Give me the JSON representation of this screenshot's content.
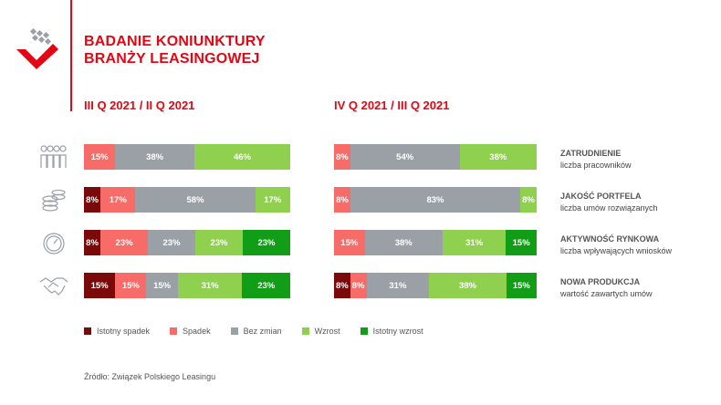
{
  "title": {
    "line1": "BADANIE KONIUNKTURY",
    "line2": "BRANŻY LEASINGOWEJ"
  },
  "colors": {
    "accent": "#e30613",
    "series": [
      "#7a0a0a",
      "#f76b68",
      "#9aa0a6",
      "#8fd14f",
      "#119e16"
    ]
  },
  "chart_data": {
    "type": "bar",
    "orientation": "horizontal-stacked-100",
    "series_names": [
      "Istotny spadek",
      "Spadek",
      "Bez zmian",
      "Wzrost",
      "Istotny wzrost"
    ],
    "categories": [
      {
        "name": "ZATRUDNIENIE",
        "subtitle": "liczba pracowników",
        "icon": "people-icon"
      },
      {
        "name": "JAKOŚĆ PORTFELA",
        "subtitle": "liczba umów rozwiązanych",
        "icon": "coins-icon"
      },
      {
        "name": "AKTYWNOŚĆ RYNKOWA",
        "subtitle": "liczba wpływających wniosków",
        "icon": "gauge-icon"
      },
      {
        "name": "NOWA PRODUKCJA",
        "subtitle": "wartość zawartych umów",
        "icon": "handshake-icon"
      }
    ],
    "panels": [
      {
        "title": "III Q 2021 / II Q 2021",
        "rows": [
          [
            0,
            15,
            38,
            46,
            0
          ],
          [
            8,
            17,
            58,
            17,
            0
          ],
          [
            8,
            23,
            23,
            23,
            23
          ],
          [
            15,
            15,
            15,
            31,
            23
          ]
        ]
      },
      {
        "title": "IV Q 2021 / III Q 2021",
        "rows": [
          [
            0,
            8,
            54,
            38,
            0
          ],
          [
            0,
            8,
            83,
            8,
            0
          ],
          [
            0,
            15,
            38,
            31,
            15
          ],
          [
            8,
            8,
            31,
            38,
            15
          ]
        ]
      }
    ],
    "value_suffix": "%"
  },
  "legend": [
    {
      "label": "Istotny spadek",
      "color": "#7a0a0a"
    },
    {
      "label": "Spadek",
      "color": "#f76b68"
    },
    {
      "label": "Bez zmian",
      "color": "#9aa0a6"
    },
    {
      "label": "Wzrost",
      "color": "#8fd14f"
    },
    {
      "label": "Istotny wzrost",
      "color": "#119e16"
    }
  ],
  "source": "Źródło: Związek Polskiego Leasingu"
}
